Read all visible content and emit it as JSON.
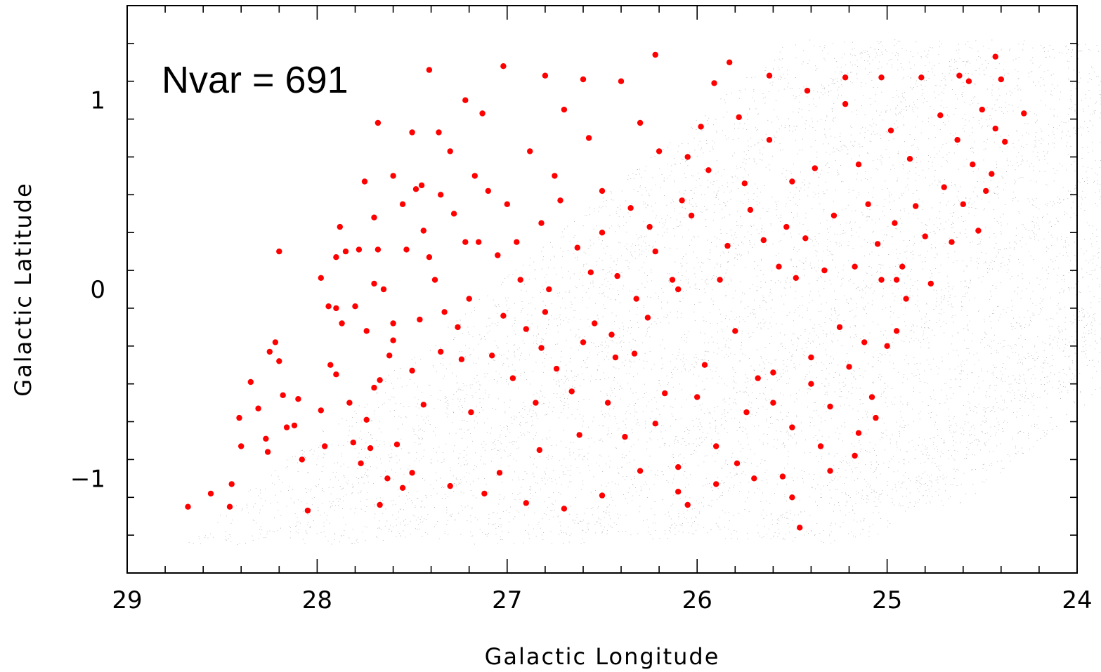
{
  "chart_data": {
    "type": "scatter",
    "title": "",
    "annotation": "Nvar = 691",
    "xlabel": "Galactic Longitude",
    "ylabel": "Galactic Latitude",
    "xlim": [
      29,
      24
    ],
    "ylim": [
      -1.5,
      1.5
    ],
    "x_reversed": true,
    "x_ticks": [
      29,
      28,
      27,
      26,
      25,
      24
    ],
    "x_tick_labels": [
      "29",
      "28",
      "27",
      "26",
      "25",
      "24"
    ],
    "y_ticks": [
      -1,
      0,
      1
    ],
    "y_tick_labels": [
      "−1",
      "0",
      "1"
    ],
    "grid": false,
    "background_field_color": "#9a9a9a",
    "series": [
      {
        "marker_color": "#ff0000",
        "points": [
          [
            28.68,
            -1.15
          ],
          [
            28.56,
            -1.08
          ],
          [
            28.46,
            -1.15
          ],
          [
            28.45,
            -1.03
          ],
          [
            28.4,
            -0.83
          ],
          [
            28.41,
            -0.68
          ],
          [
            28.35,
            -0.49
          ],
          [
            28.31,
            -0.63
          ],
          [
            28.27,
            -0.79
          ],
          [
            28.26,
            -0.86
          ],
          [
            28.25,
            -0.33
          ],
          [
            28.22,
            -0.28
          ],
          [
            28.2,
            -0.38
          ],
          [
            28.18,
            -0.56
          ],
          [
            28.16,
            -0.73
          ],
          [
            28.12,
            -0.72
          ],
          [
            28.1,
            -0.58
          ],
          [
            28.08,
            -0.9
          ],
          [
            28.05,
            -1.17
          ],
          [
            27.98,
            -0.64
          ],
          [
            27.96,
            -0.83
          ],
          [
            27.93,
            -0.4
          ],
          [
            27.9,
            -0.1
          ],
          [
            27.87,
            -0.18
          ],
          [
            27.83,
            -0.6
          ],
          [
            27.81,
            -0.81
          ],
          [
            27.77,
            -0.92
          ],
          [
            27.74,
            -0.69
          ],
          [
            27.7,
            -0.52
          ],
          [
            27.67,
            -1.14
          ],
          [
            27.63,
            -1.0
          ],
          [
            27.6,
            -0.27
          ],
          [
            27.58,
            -0.82
          ],
          [
            27.55,
            -1.05
          ],
          [
            27.98,
            0.06
          ],
          [
            27.94,
            -0.09
          ],
          [
            27.9,
            0.17
          ],
          [
            27.88,
            0.33
          ],
          [
            27.8,
            -0.09
          ],
          [
            27.78,
            0.21
          ],
          [
            27.74,
            -0.22
          ],
          [
            27.7,
            0.03
          ],
          [
            27.68,
            0.21
          ],
          [
            27.67,
            -0.48
          ],
          [
            27.65,
            0.0
          ],
          [
            27.6,
            -0.18
          ],
          [
            27.6,
            0.6
          ],
          [
            27.55,
            0.45
          ],
          [
            27.53,
            0.21
          ],
          [
            27.5,
            -0.43
          ],
          [
            27.48,
            0.53
          ],
          [
            27.44,
            0.31
          ],
          [
            27.44,
            -0.61
          ],
          [
            27.41,
            0.17
          ],
          [
            27.38,
            0.05
          ],
          [
            27.36,
            0.83
          ],
          [
            27.35,
            0.5
          ],
          [
            27.33,
            -0.12
          ],
          [
            27.3,
            0.73
          ],
          [
            27.28,
            0.4
          ],
          [
            27.26,
            -0.2
          ],
          [
            27.22,
            0.25
          ],
          [
            27.2,
            -0.05
          ],
          [
            27.17,
            0.6
          ],
          [
            27.13,
            0.93
          ],
          [
            27.1,
            0.52
          ],
          [
            27.08,
            -0.35
          ],
          [
            27.05,
            0.18
          ],
          [
            27.0,
            0.45
          ],
          [
            26.97,
            -0.47
          ],
          [
            26.93,
            0.05
          ],
          [
            26.9,
            -0.21
          ],
          [
            26.88,
            0.73
          ],
          [
            26.85,
            -0.6
          ],
          [
            26.82,
            0.35
          ],
          [
            26.8,
            -0.12
          ],
          [
            26.78,
            0.0
          ],
          [
            26.74,
            -0.42
          ],
          [
            26.72,
            0.47
          ],
          [
            26.7,
            0.95
          ],
          [
            26.66,
            -0.54
          ],
          [
            26.63,
            0.22
          ],
          [
            26.6,
            -0.28
          ],
          [
            26.57,
            0.8
          ],
          [
            26.54,
            -0.18
          ],
          [
            26.5,
            0.3
          ],
          [
            26.47,
            -0.6
          ],
          [
            26.45,
            -0.24
          ],
          [
            26.42,
            0.07
          ],
          [
            26.38,
            -0.78
          ],
          [
            26.35,
            0.43
          ],
          [
            26.33,
            -0.34
          ],
          [
            26.3,
            0.88
          ],
          [
            26.26,
            -0.15
          ],
          [
            26.22,
            0.2
          ],
          [
            26.2,
            0.73
          ],
          [
            26.17,
            -0.55
          ],
          [
            26.13,
            0.05
          ],
          [
            26.1,
            -0.94
          ],
          [
            26.08,
            0.47
          ],
          [
            26.05,
            -1.14
          ],
          [
            26.03,
            0.39
          ],
          [
            25.98,
            0.86
          ],
          [
            25.96,
            -0.4
          ],
          [
            25.94,
            0.63
          ],
          [
            25.9,
            -0.83
          ],
          [
            25.88,
            0.05
          ],
          [
            25.84,
            0.23
          ],
          [
            25.8,
            -0.22
          ],
          [
            25.78,
            0.91
          ],
          [
            25.74,
            -0.65
          ],
          [
            25.72,
            0.42
          ],
          [
            25.68,
            -0.47
          ],
          [
            25.65,
            0.26
          ],
          [
            25.62,
            0.79
          ],
          [
            25.6,
            -0.6
          ],
          [
            25.57,
            0.12
          ],
          [
            25.55,
            -0.99
          ],
          [
            25.53,
            0.33
          ],
          [
            25.5,
            -0.73
          ],
          [
            25.48,
            0.06
          ],
          [
            25.46,
            -1.26
          ],
          [
            25.43,
            0.27
          ],
          [
            25.4,
            -0.36
          ],
          [
            25.38,
            0.64
          ],
          [
            25.35,
            -0.83
          ],
          [
            25.33,
            0.1
          ],
          [
            25.3,
            -0.62
          ],
          [
            25.28,
            0.39
          ],
          [
            25.25,
            -0.2
          ],
          [
            25.22,
            0.98
          ],
          [
            25.2,
            -0.41
          ],
          [
            25.17,
            0.12
          ],
          [
            25.15,
            0.66
          ],
          [
            25.12,
            -0.28
          ],
          [
            25.1,
            0.45
          ],
          [
            25.08,
            -0.57
          ],
          [
            25.05,
            0.24
          ],
          [
            25.03,
            0.05
          ],
          [
            25.0,
            -0.3
          ],
          [
            24.98,
            0.84
          ],
          [
            24.96,
            0.35
          ],
          [
            24.92,
            0.12
          ],
          [
            24.9,
            -0.05
          ],
          [
            24.88,
            0.69
          ],
          [
            24.85,
            0.44
          ],
          [
            24.8,
            0.28
          ],
          [
            24.77,
            0.03
          ],
          [
            24.72,
            0.92
          ],
          [
            24.7,
            0.54
          ],
          [
            24.66,
            0.25
          ],
          [
            24.63,
            0.79
          ],
          [
            24.6,
            0.45
          ],
          [
            24.57,
            1.1
          ],
          [
            24.55,
            0.66
          ],
          [
            24.52,
            0.31
          ],
          [
            24.5,
            0.95
          ],
          [
            24.48,
            0.52
          ],
          [
            24.45,
            0.61
          ],
          [
            24.43,
            0.85
          ],
          [
            24.4,
            1.11
          ],
          [
            24.38,
            0.78
          ],
          [
            24.28,
            0.93
          ],
          [
            24.43,
            1.23
          ],
          [
            24.62,
            1.13
          ],
          [
            24.82,
            1.12
          ],
          [
            25.03,
            1.12
          ],
          [
            25.22,
            1.12
          ],
          [
            25.42,
            1.05
          ],
          [
            25.62,
            1.13
          ],
          [
            25.83,
            1.2
          ],
          [
            25.91,
            1.09
          ],
          [
            26.22,
            1.24
          ],
          [
            26.4,
            1.1
          ],
          [
            26.6,
            1.11
          ],
          [
            26.8,
            1.13
          ],
          [
            27.02,
            1.18
          ],
          [
            27.22,
            1.0
          ],
          [
            27.41,
            1.16
          ],
          [
            27.5,
            0.83
          ],
          [
            27.68,
            0.88
          ],
          [
            27.75,
            0.57
          ],
          [
            27.85,
            0.2
          ],
          [
            28.2,
            0.2
          ],
          [
            27.9,
            -0.45
          ],
          [
            27.72,
            -0.84
          ],
          [
            27.5,
            -0.97
          ],
          [
            27.3,
            -1.04
          ],
          [
            27.12,
            -1.08
          ],
          [
            26.9,
            -1.13
          ],
          [
            26.7,
            -1.16
          ],
          [
            26.5,
            -1.09
          ],
          [
            26.3,
            -0.96
          ],
          [
            26.1,
            -1.07
          ],
          [
            25.9,
            -1.03
          ],
          [
            25.7,
            -1.0
          ],
          [
            25.5,
            -1.1
          ],
          [
            25.3,
            -0.96
          ],
          [
            25.15,
            -0.76
          ],
          [
            24.95,
            -0.22
          ],
          [
            27.35,
            -0.33
          ],
          [
            27.19,
            -0.65
          ],
          [
            27.04,
            -0.97
          ],
          [
            26.83,
            -0.85
          ],
          [
            26.62,
            -0.77
          ],
          [
            26.43,
            -0.36
          ],
          [
            26.22,
            -0.71
          ],
          [
            26.0,
            -0.57
          ],
          [
            25.79,
            -0.92
          ],
          [
            25.6,
            -0.44
          ],
          [
            25.4,
            -0.5
          ],
          [
            25.17,
            -0.88
          ],
          [
            25.06,
            -0.68
          ],
          [
            24.95,
            0.05
          ],
          [
            25.5,
            0.57
          ],
          [
            25.75,
            0.56
          ],
          [
            26.05,
            0.7
          ],
          [
            26.25,
            0.33
          ],
          [
            26.5,
            0.52
          ],
          [
            26.75,
            0.6
          ],
          [
            26.95,
            0.25
          ],
          [
            27.15,
            0.25
          ],
          [
            27.45,
            0.55
          ],
          [
            27.7,
            0.38
          ],
          [
            26.1,
            0.0
          ],
          [
            26.32,
            -0.05
          ],
          [
            26.56,
            0.09
          ],
          [
            26.82,
            -0.31
          ],
          [
            27.02,
            -0.14
          ],
          [
            27.24,
            -0.37
          ],
          [
            27.46,
            -0.16
          ],
          [
            27.62,
            -0.35
          ]
        ]
      }
    ]
  }
}
